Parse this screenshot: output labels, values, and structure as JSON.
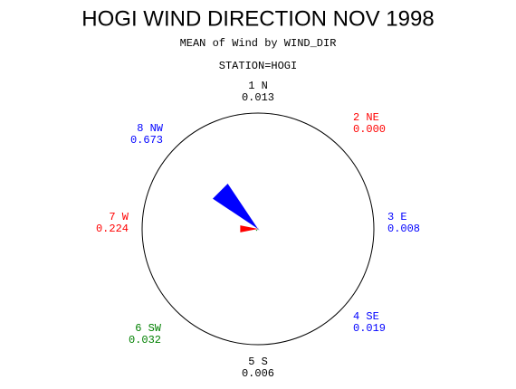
{
  "chart_data": {
    "type": "wind_rose",
    "title": "HOGI WIND DIRECTION NOV 1998",
    "subtitle": "MEAN of Wind by WIND_DIR",
    "station": "STATION=HOGI",
    "categories": [
      "1 N",
      "2 NE",
      "3 E",
      "4 SE",
      "5 S",
      "6 SW",
      "7 W",
      "8 NW"
    ],
    "values": [
      0.013,
      0.0,
      0.008,
      0.019,
      0.006,
      0.032,
      0.224,
      0.673
    ],
    "value_labels": [
      "0.013",
      "0.000",
      "0.008",
      "0.019",
      "0.006",
      "0.032",
      "0.224",
      "0.673"
    ],
    "colors": [
      "#000000",
      "#ff0000",
      "#0000ff",
      "#0000ff",
      "#000000",
      "#008000",
      "#ff0000",
      "#0000ff"
    ]
  }
}
